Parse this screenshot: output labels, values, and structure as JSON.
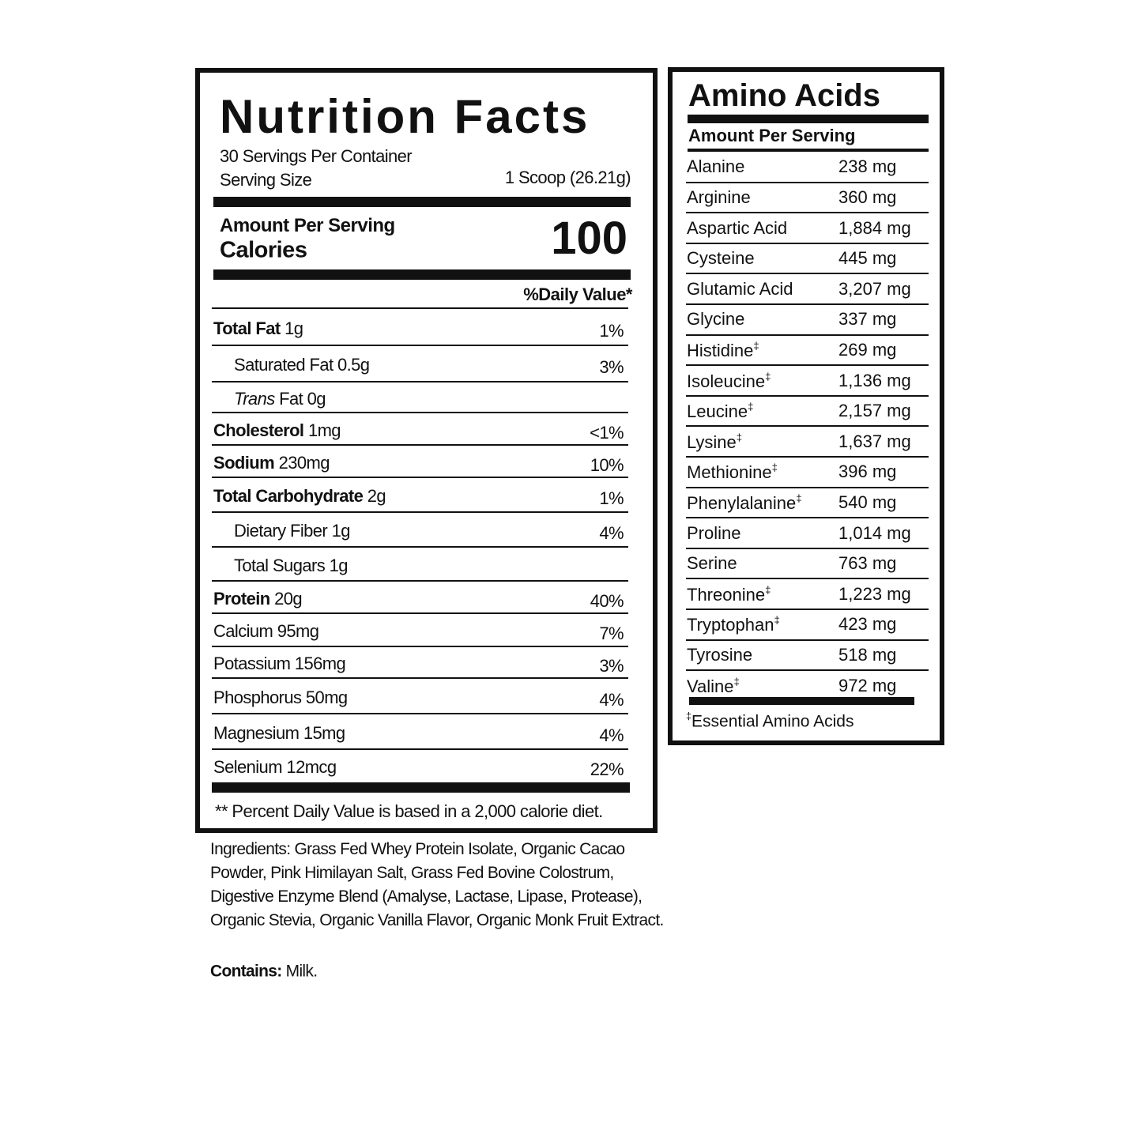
{
  "nutrition_facts": {
    "title": "Nutrition Facts",
    "servings_per_container": "30 Servings Per Container",
    "serving_size_label": "Serving Size",
    "serving_size_value": "1 Scoop (26.21g)",
    "amount_per_serving": "Amount Per Serving",
    "calories_label": "Calories",
    "calories_value": "100",
    "daily_value_header": "%Daily Value*",
    "rows": [
      {
        "parts": [
          "Total Fat",
          "1g"
        ],
        "dv": "1%"
      },
      {
        "parts": [
          "Saturated Fat 0.5g"
        ],
        "dv": "3%"
      },
      {
        "parts": [
          "Trans",
          "Fat 0g"
        ]
      },
      {
        "parts": [
          "Cholesterol",
          "1mg"
        ],
        "dv": "<1%"
      },
      {
        "parts": [
          "Sodium",
          "230mg"
        ],
        "dv": "10%"
      },
      {
        "parts": [
          "Total Carbohydrate",
          "2g"
        ],
        "dv": "1%"
      },
      {
        "parts": [
          "Dietary Fiber 1g"
        ],
        "dv": "4%"
      },
      {
        "parts": [
          "Total Sugars 1g"
        ]
      },
      {
        "parts": [
          "Protein",
          "20g"
        ],
        "dv": "40%"
      },
      {
        "parts": [
          "Calcium 95mg"
        ],
        "dv": "7%"
      },
      {
        "parts": [
          "Potassium 156mg"
        ],
        "dv": "3%"
      },
      {
        "parts": [
          "Phosphorus 50mg"
        ],
        "dv": "4%"
      },
      {
        "parts": [
          "Magnesium 15mg"
        ],
        "dv": "4%"
      },
      {
        "parts": [
          "Selenium 12mcg"
        ],
        "dv": "22%"
      }
    ],
    "footnote": "** Percent Daily Value is based in a 2,000 calorie diet."
  },
  "ingredients": {
    "text": "Ingredients: Grass Fed Whey Protein Isolate, Organic Cacao Powder, Pink Himilayan Salt, Grass Fed Bovine Colostrum, Digestive Enzyme Blend (Amalyse, Lactase, Lipase, Protease), Organic Stevia, Organic Vanilla Flavor, Organic Monk Fruit Extract.",
    "contains_label": "Contains:",
    "contains_text": "Milk."
  },
  "amino_acids": {
    "title": "Amino Acids",
    "amount_per_serving": "Amount Per Serving",
    "rows": [
      {
        "name": "Alanine",
        "amount": "238 mg"
      },
      {
        "name": "Arginine",
        "amount": "360 mg"
      },
      {
        "name": "Aspartic Acid",
        "amount": "1,884 mg"
      },
      {
        "name": "Cysteine",
        "amount": "445 mg"
      },
      {
        "name": "Glutamic Acid",
        "amount": "3,207 mg"
      },
      {
        "name": "Glycine",
        "amount": "337 mg"
      },
      {
        "name": "Histidine",
        "mark": "‡",
        "amount": "269 mg"
      },
      {
        "name": "Isoleucine",
        "mark": "‡",
        "amount": "1,136 mg"
      },
      {
        "name": "Leucine",
        "mark": "‡",
        "amount": "2,157 mg"
      },
      {
        "name": "Lysine",
        "mark": "‡",
        "amount": "1,637 mg"
      },
      {
        "name": "Methionine",
        "mark": "‡",
        "amount": "396 mg"
      },
      {
        "name": "Phenylalanine",
        "mark": "‡",
        "amount": "540 mg"
      },
      {
        "name": "Proline",
        "amount": "1,014 mg"
      },
      {
        "name": "Serine",
        "amount": "763 mg"
      },
      {
        "name": "Threonine",
        "mark": "‡",
        "amount": "1,223 mg"
      },
      {
        "name": "Tryptophan",
        "mark": "‡",
        "amount": "423 mg"
      },
      {
        "name": "Tyrosine",
        "amount": "518 mg"
      },
      {
        "name": "Valine",
        "mark": "‡",
        "amount": "972 mg"
      }
    ],
    "footnote": {
      "mark": "‡",
      "text": "Essential Amino Acids"
    }
  }
}
